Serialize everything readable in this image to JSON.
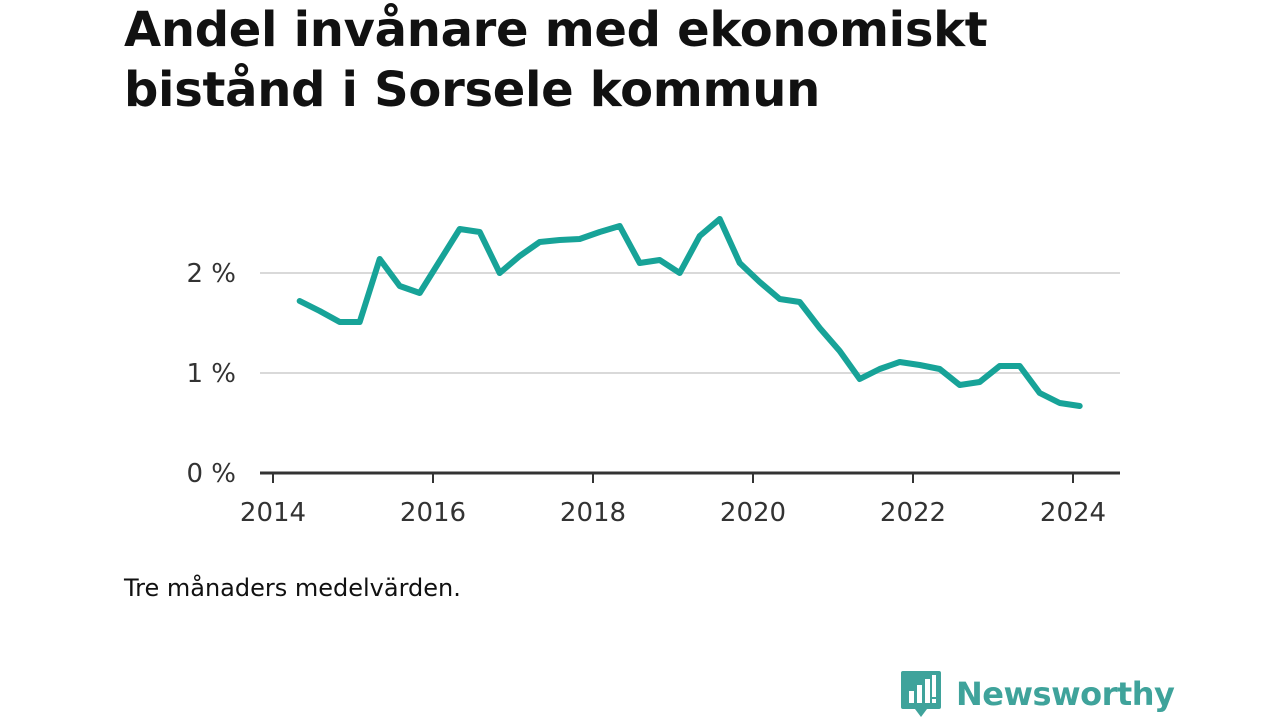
{
  "title": "Andel invånare med ekonomiskt bistånd i Sorsele kommun",
  "note": "Tre månaders medelvärden.",
  "brand": {
    "name": "Newsworthy",
    "icon": "newsworthy-logo-icon",
    "color": "#3fa39b"
  },
  "chart_data": {
    "type": "line",
    "title": "Andel invånare med ekonomiskt bistånd i Sorsele kommun",
    "xlabel": "",
    "ylabel": "",
    "xlim": [
      2014,
      2024.6
    ],
    "ylim": [
      0,
      2.6
    ],
    "x_ticks": [
      {
        "value": 2014,
        "label": "2014"
      },
      {
        "value": 2016,
        "label": "2016"
      },
      {
        "value": 2018,
        "label": "2018"
      },
      {
        "value": 2020,
        "label": "2020"
      },
      {
        "value": 2022,
        "label": "2022"
      },
      {
        "value": 2024,
        "label": "2024"
      }
    ],
    "y_ticks": [
      {
        "value": 0,
        "label": "0 %"
      },
      {
        "value": 1,
        "label": "1 %"
      },
      {
        "value": 2,
        "label": "2 %"
      }
    ],
    "grid": true,
    "line_color": "#17a398",
    "series": [
      {
        "x": [
          "2014-05",
          "2014-08",
          "2014-11",
          "2015-02",
          "2015-05",
          "2015-08",
          "2015-11",
          "2016-02",
          "2016-05",
          "2016-08",
          "2016-11",
          "2017-02",
          "2017-05",
          "2017-08",
          "2017-11",
          "2018-02",
          "2018-05",
          "2018-08",
          "2018-11",
          "2019-02",
          "2019-05",
          "2019-08",
          "2019-11",
          "2020-02",
          "2020-05",
          "2020-08",
          "2020-11",
          "2021-02",
          "2021-05",
          "2021-08",
          "2021-11",
          "2022-02",
          "2022-05",
          "2022-08",
          "2022-11",
          "2023-02",
          "2023-05",
          "2023-08",
          "2023-11",
          "2024-02"
        ],
        "values": [
          1.72,
          1.62,
          1.51,
          1.51,
          2.14,
          1.87,
          1.8,
          2.12,
          2.44,
          2.41,
          2.0,
          2.17,
          2.31,
          2.33,
          2.34,
          2.41,
          2.47,
          2.1,
          2.13,
          2.0,
          2.37,
          2.54,
          2.1,
          1.91,
          1.74,
          1.71,
          1.45,
          1.22,
          0.94,
          1.04,
          1.11,
          1.08,
          1.04,
          0.88,
          0.91,
          1.07,
          1.07,
          0.8,
          0.7,
          0.67
        ]
      }
    ]
  }
}
